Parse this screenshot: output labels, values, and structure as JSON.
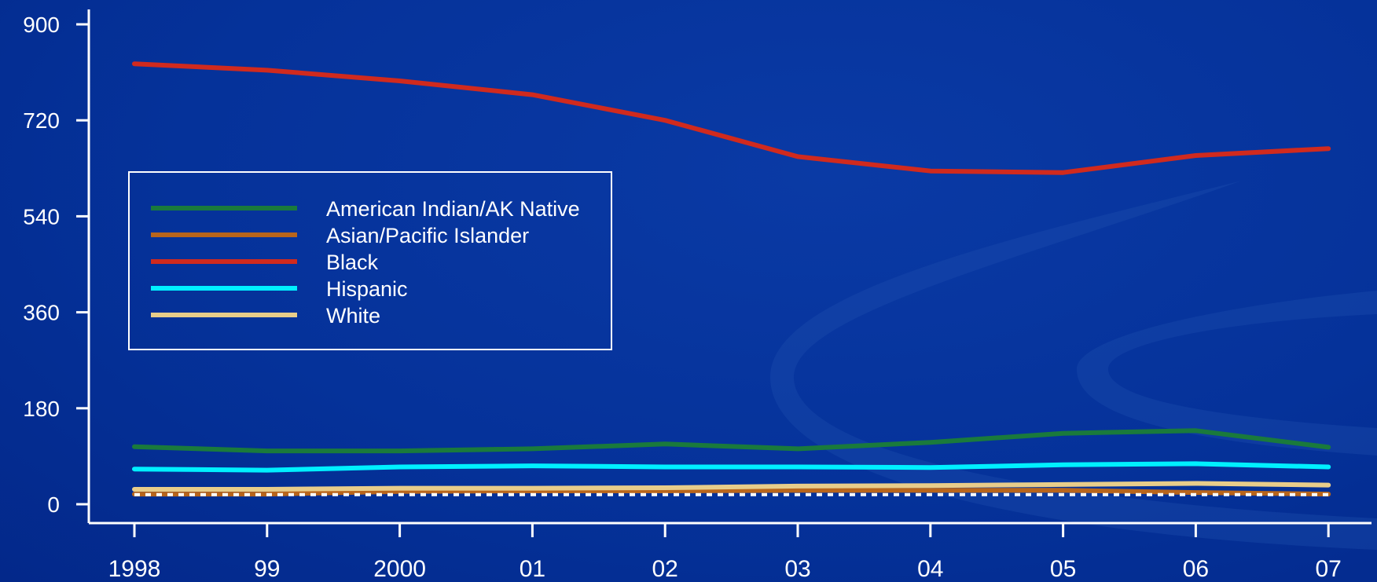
{
  "colors": {
    "background": "#05329a",
    "axis": "#ffffff",
    "legend_border": "#ffffff"
  },
  "chart_data": {
    "type": "line",
    "title": "",
    "xlabel": "",
    "ylabel": "",
    "x": [
      "1998",
      "99",
      "2000",
      "01",
      "02",
      "03",
      "04",
      "05",
      "06",
      "07"
    ],
    "ylim": [
      0,
      900
    ],
    "yticks": [
      "0",
      "180",
      "360",
      "540",
      "720",
      "900"
    ],
    "grid": false,
    "legend_position": "left-middle",
    "series": [
      {
        "name": "American Indian/AK Native",
        "color": "#1a7a3c",
        "values": [
          108,
          100,
          100,
          104,
          113,
          104,
          116,
          133,
          138,
          107
        ]
      },
      {
        "name": "Asian/Pacific Islander",
        "color": "#b8651c",
        "values": [
          19,
          19,
          24,
          25,
          25,
          26,
          26,
          26,
          22,
          19
        ]
      },
      {
        "name": "Black",
        "color": "#d02a1e",
        "values": [
          826,
          814,
          794,
          768,
          720,
          652,
          625,
          622,
          654,
          667
        ]
      },
      {
        "name": "Hispanic",
        "color": "#00f0ff",
        "values": [
          66,
          64,
          70,
          72,
          70,
          70,
          69,
          74,
          76,
          70
        ]
      },
      {
        "name": "White",
        "color": "#e8cd8a",
        "values": [
          28,
          28,
          30,
          30,
          31,
          34,
          35,
          37,
          39,
          36
        ]
      }
    ],
    "reference_line": {
      "style": "dotted",
      "color": "#ffffff",
      "values": [
        18,
        18,
        18,
        18,
        18,
        18,
        18,
        18,
        18,
        18
      ]
    }
  }
}
